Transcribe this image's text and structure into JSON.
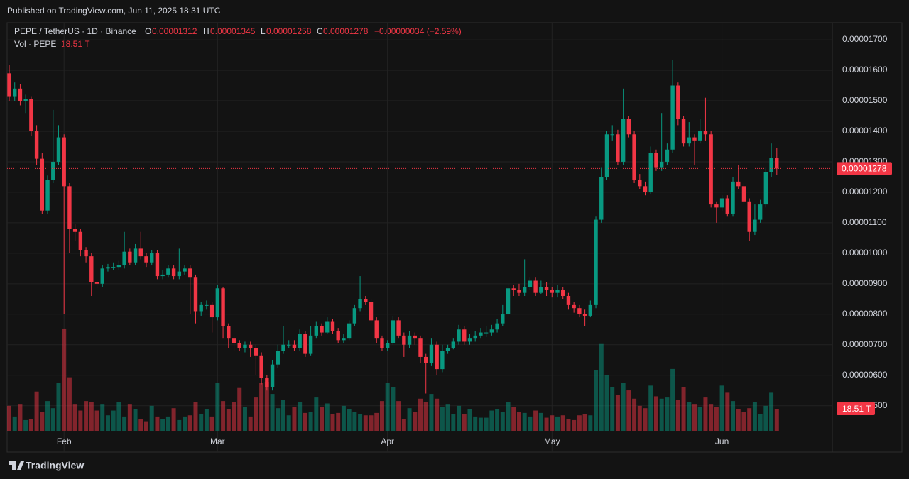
{
  "header": {
    "published": "Published on TradingView.com, Jun 11, 2025 18:31 UTC",
    "symbol": "PEPE / TetherUS · 1D · Binance",
    "o": "O",
    "h": "H",
    "l": "L",
    "c": "C",
    "change": "−0.00000034 (−2.59%)",
    "vol": "Vol · PEPE",
    "vol_value": "18.51 T",
    "brand": "TradingView"
  },
  "chart_data": {
    "type": "candlestick",
    "up_color": "#089981",
    "down_color": "#f23645",
    "grid": true,
    "ylim": [
      3.48e-06,
      1.756e-05
    ],
    "yticks": [
      {
        "value": 5e-06,
        "label": "0.00000500"
      },
      {
        "value": 6e-06,
        "label": "0.00000600"
      },
      {
        "value": 7e-06,
        "label": "0.00000700"
      },
      {
        "value": 8e-06,
        "label": "0.00000800"
      },
      {
        "value": 9e-06,
        "label": "0.00000900"
      },
      {
        "value": 1e-05,
        "label": "0.00001000"
      },
      {
        "value": 1.1e-05,
        "label": "0.00001100"
      },
      {
        "value": 1.2e-05,
        "label": "0.00001200"
      },
      {
        "value": 1.3e-05,
        "label": "0.00001300"
      },
      {
        "value": 1.4e-05,
        "label": "0.00001400"
      },
      {
        "value": 1.5e-05,
        "label": "0.00001500"
      },
      {
        "value": 1.6e-05,
        "label": "0.00001600"
      },
      {
        "value": 1.7e-05,
        "label": "0.00001700"
      }
    ],
    "xticks": [
      {
        "value": 10,
        "label": "Feb"
      },
      {
        "value": 38,
        "label": "Mar"
      },
      {
        "value": 69,
        "label": "Apr"
      },
      {
        "value": 99,
        "label": "May"
      },
      {
        "value": 130,
        "label": "Jun"
      }
    ],
    "open": [
      1.59e-05,
      1.515e-05,
      1.54e-05,
      1.5e-05,
      1.505e-05,
      1.4e-05,
      1.31e-05,
      1.14e-05,
      1.24e-05,
      1.3e-05,
      1.38e-05,
      1.22e-05,
      1.08e-05,
      1.07e-05,
      1.01e-05,
      9.9e-06,
      9.05e-06,
      9e-06,
      9.5e-06,
      9.55e-06,
      9.55e-06,
      9.6e-06,
      1.005e-05,
      9.7e-06,
      1.015e-05,
      9.9e-06,
      9.7e-06,
      1e-05,
      9.25e-06,
      9.3e-06,
      9.5e-06,
      9.25e-06,
      9.4e-06,
      9.5e-06,
      9.2e-06,
      8.1e-06,
      8.3e-06,
      8.3e-06,
      7.9e-06,
      8.85e-06,
      7.6e-06,
      7.2e-06,
      7.05e-06,
      6.9e-06,
      7e-06,
      6.9e-06,
      6.65e-06,
      5.9e-06,
      5.6e-06,
      6.35e-06,
      6.8e-06,
      7e-06,
      7e-06,
      6.9e-06,
      7.35e-06,
      6.7e-06,
      7.3e-06,
      7.6e-06,
      7.4e-06,
      7.75e-06,
      7.45e-06,
      7.15e-06,
      7.2e-06,
      7.7e-06,
      8.2e-06,
      8.5e-06,
      8.4e-06,
      7.8e-06,
      7.2e-06,
      6.9e-06,
      7.05e-06,
      7.8e-06,
      7.3e-06,
      7e-06,
      7.3e-06,
      7.2e-06,
      6.6e-06,
      6.4e-06,
      7e-06,
      6.2e-06,
      6.8e-06,
      6.9e-06,
      7.1e-06,
      7.5e-06,
      7.1e-06,
      7.2e-06,
      7.3e-06,
      7.4e-06,
      7.4e-06,
      7.5e-06,
      7.7e-06,
      8e-06,
      8.85e-06,
      8.8e-06,
      8.7e-06,
      8.9e-06,
      9.1e-06,
      8.7e-06,
      8.9e-06,
      8.8e-06,
      8.7e-06,
      8.8e-06,
      8.6e-06,
      8.3e-06,
      8.2e-06,
      8e-06,
      7.95e-06,
      8.3e-06,
      1.11e-05,
      1.25e-05,
      1.39e-05,
      1.39e-05,
      1.3e-05,
      1.44e-05,
      1.39e-05,
      1.24e-05,
      1.22e-05,
      1.2e-05,
      1.33e-05,
      1.28e-05,
      1.3e-05,
      1.34e-05,
      1.55e-05,
      1.44e-05,
      1.36e-05,
      1.38e-05,
      1.37e-05,
      1.4e-05,
      1.39e-05,
      1.16e-05,
      1.15e-05,
      1.18e-05,
      1.13e-05,
      1.235e-05,
      1.22e-05,
      1.17e-05,
      1.07e-05,
      1.11e-05,
      1.16e-05,
      1.265e-05,
      1.312e-05
    ],
    "high": [
      1.618e-05,
      1.56e-05,
      1.555e-05,
      1.52e-05,
      1.515e-05,
      1.42e-05,
      1.33e-05,
      1.255e-05,
      1.47e-05,
      1.42e-05,
      1.39e-05,
      1.23e-05,
      1.095e-05,
      1.08e-05,
      1.02e-05,
      1e-05,
      9.15e-06,
      9.6e-06,
      9.65e-06,
      9.7e-06,
      9.75e-06,
      1.07e-05,
      1.015e-05,
      1.03e-05,
      1.07e-05,
      1e-05,
      1.01e-05,
      1.01e-05,
      9.45e-06,
      9.6e-06,
      9.6e-06,
      1.015e-05,
      9.6e-06,
      9.6e-06,
      9.3e-06,
      8.4e-06,
      8.45e-06,
      8.4e-06,
      8.95e-06,
      8.9e-06,
      7.7e-06,
      7.3e-06,
      7.15e-06,
      7.1e-06,
      7.1e-06,
      7e-06,
      6.75e-06,
      6e-06,
      6.5e-06,
      7e-06,
      7.6e-06,
      7.15e-06,
      7.15e-06,
      7.5e-06,
      7.45e-06,
      7.6e-06,
      7.75e-06,
      7.7e-06,
      7.9e-06,
      7.85e-06,
      7.55e-06,
      7.35e-06,
      7.8e-06,
      8.3e-06,
      9.25e-06,
      8.6e-06,
      8.5e-06,
      7.9e-06,
      7.3e-06,
      7.15e-06,
      7.95e-06,
      7.9e-06,
      7.4e-06,
      7.45e-06,
      7.4e-06,
      7.3e-06,
      6.7e-06,
      7.2e-06,
      7.1e-06,
      7e-06,
      7e-06,
      7.2e-06,
      7.65e-06,
      7.6e-06,
      7.35e-06,
      7.45e-06,
      7.55e-06,
      7.6e-06,
      7.65e-06,
      7.85e-06,
      8.3e-06,
      9e-06,
      8.95e-06,
      9e-06,
      9.8e-06,
      9.2e-06,
      9.2e-06,
      9.1e-06,
      9.05e-06,
      8.9e-06,
      8.95e-06,
      8.9e-06,
      8.7e-06,
      8.4e-06,
      8.3e-06,
      8.15e-06,
      8.45e-06,
      1.12e-05,
      1.28e-05,
      1.4e-05,
      1.42e-05,
      1.405e-05,
      1.54e-05,
      1.45e-05,
      1.4e-05,
      1.26e-05,
      1.235e-05,
      1.35e-05,
      1.34e-05,
      1.46e-05,
      1.36e-05,
      1.635e-05,
      1.56e-05,
      1.45e-05,
      1.43e-05,
      1.39e-05,
      1.44e-05,
      1.51e-05,
      1.4e-05,
      1.17e-05,
      1.19e-05,
      1.19e-05,
      1.25e-05,
      1.29e-05,
      1.23e-05,
      1.18e-05,
      1.16e-05,
      1.175e-05,
      1.28e-05,
      1.36e-05,
      1.345e-05
    ],
    "low": [
      1.5e-05,
      1.5e-05,
      1.485e-05,
      1.46e-05,
      1.385e-05,
      1.29e-05,
      1.13e-05,
      1.13e-05,
      1.23e-05,
      1.29e-05,
      8e-06,
      1e-05,
      1.04e-05,
      9.9e-06,
      9.7e-06,
      8.6e-06,
      8.85e-06,
      8.9e-06,
      9.4e-06,
      9.45e-06,
      9.45e-06,
      9.5e-06,
      9.6e-06,
      9.6e-06,
      9.8e-06,
      9.55e-06,
      9.6e-06,
      9.15e-06,
      9.15e-06,
      9.2e-06,
      9.15e-06,
      9.15e-06,
      9.3e-06,
      8e-06,
      7.7e-06,
      7.95e-06,
      8.15e-06,
      7.4e-06,
      7.8e-06,
      7.2e-06,
      6.9e-06,
      6.8e-06,
      6.8e-06,
      6.75e-06,
      6.6e-06,
      6e-06,
      5.7e-06,
      5.5e-06,
      5.5e-06,
      6.25e-06,
      6.7e-06,
      6.9e-06,
      6.8e-06,
      6.8e-06,
      6.6e-06,
      6.65e-06,
      7.2e-06,
      7.3e-06,
      7.35e-06,
      7.35e-06,
      7.05e-06,
      7.05e-06,
      7.15e-06,
      7.6e-06,
      8.1e-06,
      8.3e-06,
      7.7e-06,
      7.05e-06,
      6.8e-06,
      6.8e-06,
      7e-06,
      7.2e-06,
      6.6e-06,
      6.9e-06,
      7e-06,
      6.4e-06,
      5.4e-06,
      6.3e-06,
      6e-06,
      6.1e-06,
      6.7e-06,
      6.85e-06,
      7e-06,
      7e-06,
      7e-06,
      7.1e-06,
      7.2e-06,
      7.25e-06,
      7.3e-06,
      7.4e-06,
      7.6e-06,
      7.9e-06,
      8.6e-06,
      8.6e-06,
      8.6e-06,
      8.8e-06,
      8.6e-06,
      8.65e-06,
      8.6e-06,
      8.55e-06,
      8.55e-06,
      8.5e-06,
      8.15e-06,
      8.05e-06,
      7.9e-06,
      7.6e-06,
      7.9e-06,
      8.2e-06,
      1.1e-05,
      1.24e-05,
      1.37e-05,
      1.29e-05,
      1.29e-05,
      1.38e-05,
      1.23e-05,
      1.21e-05,
      1.19e-05,
      1.195e-05,
      1.27e-05,
      1.27e-05,
      1.29e-05,
      1.33e-05,
      1.42e-05,
      1.35e-05,
      1.35e-05,
      1.29e-05,
      1.36e-05,
      1.37e-05,
      1.15e-05,
      1.1e-05,
      1.14e-05,
      1.12e-05,
      1.12e-05,
      1.21e-05,
      1.16e-05,
      1.04e-05,
      1.06e-05,
      1.1e-05,
      1.15e-05,
      1.25e-05,
      1.258e-05
    ],
    "close": [
      1.515e-05,
      1.54e-05,
      1.5e-05,
      1.505e-05,
      1.4e-05,
      1.31e-05,
      1.14e-05,
      1.24e-05,
      1.3e-05,
      1.38e-05,
      1.22e-05,
      1.08e-05,
      1.07e-05,
      1.01e-05,
      9.9e-06,
      9.05e-06,
      9e-06,
      9.5e-06,
      9.55e-06,
      9.55e-06,
      9.6e-06,
      1.005e-05,
      9.7e-06,
      1.015e-05,
      9.9e-06,
      9.7e-06,
      1e-05,
      9.25e-06,
      9.3e-06,
      9.5e-06,
      9.25e-06,
      9.4e-06,
      9.5e-06,
      9.2e-06,
      8.1e-06,
      8.3e-06,
      8.3e-06,
      7.9e-06,
      8.85e-06,
      7.6e-06,
      7.2e-06,
      7.05e-06,
      6.9e-06,
      7e-06,
      6.9e-06,
      6.65e-06,
      5.9e-06,
      5.6e-06,
      6.35e-06,
      6.8e-06,
      7e-06,
      7e-06,
      6.9e-06,
      7.35e-06,
      6.7e-06,
      7.3e-06,
      7.6e-06,
      7.4e-06,
      7.75e-06,
      7.45e-06,
      7.15e-06,
      7.2e-06,
      7.7e-06,
      8.2e-06,
      8.5e-06,
      8.4e-06,
      7.8e-06,
      7.2e-06,
      6.9e-06,
      7.05e-06,
      7.8e-06,
      7.3e-06,
      7e-06,
      7.3e-06,
      7.2e-06,
      6.6e-06,
      6.4e-06,
      7e-06,
      6.2e-06,
      6.8e-06,
      6.9e-06,
      7.1e-06,
      7.5e-06,
      7.1e-06,
      7.2e-06,
      7.3e-06,
      7.4e-06,
      7.4e-06,
      7.5e-06,
      7.7e-06,
      8e-06,
      8.85e-06,
      8.8e-06,
      8.7e-06,
      8.9e-06,
      9.1e-06,
      8.7e-06,
      8.9e-06,
      8.8e-06,
      8.7e-06,
      8.8e-06,
      8.6e-06,
      8.3e-06,
      8.2e-06,
      8e-06,
      7.95e-06,
      8.3e-06,
      1.11e-05,
      1.25e-05,
      1.39e-05,
      1.39e-05,
      1.3e-05,
      1.44e-05,
      1.39e-05,
      1.24e-05,
      1.22e-05,
      1.2e-05,
      1.33e-05,
      1.28e-05,
      1.3e-05,
      1.34e-05,
      1.55e-05,
      1.44e-05,
      1.36e-05,
      1.38e-05,
      1.37e-05,
      1.4e-05,
      1.39e-05,
      1.16e-05,
      1.15e-05,
      1.18e-05,
      1.13e-05,
      1.235e-05,
      1.22e-05,
      1.17e-05,
      1.07e-05,
      1.11e-05,
      1.16e-05,
      1.265e-05,
      1.312e-05,
      1.278e-05
    ],
    "volume": [
      21,
      12,
      22,
      9,
      10,
      33,
      16,
      25,
      19,
      40,
      86,
      45,
      22,
      17,
      25,
      24,
      17,
      22,
      13,
      17,
      24,
      12,
      22,
      18,
      10,
      8,
      21,
      12,
      10,
      12,
      19,
      9,
      12,
      13,
      24,
      14,
      18,
      12,
      40,
      25,
      18,
      24,
      36,
      20,
      12,
      28,
      40,
      41,
      31,
      19,
      26,
      13,
      20,
      24,
      15,
      16,
      28,
      20,
      23,
      14,
      15,
      21,
      18,
      16,
      14,
      13,
      13,
      15,
      25,
      40,
      37,
      25,
      10,
      19,
      16,
      27,
      24,
      31,
      27,
      20,
      22,
      14,
      21,
      14,
      18,
      12,
      11,
      11,
      17,
      18,
      16,
      24,
      20,
      16,
      15,
      12,
      17,
      15,
      11,
      13,
      12,
      13,
      10,
      9,
      13,
      14,
      13,
      51,
      73,
      47,
      37,
      30,
      40,
      34,
      27,
      21,
      19,
      38,
      29,
      27,
      28,
      52,
      26,
      37,
      24,
      22,
      20,
      28,
      22,
      20,
      38,
      32,
      25,
      18,
      16,
      19,
      24,
      14,
      21,
      32,
      18.51
    ]
  }
}
